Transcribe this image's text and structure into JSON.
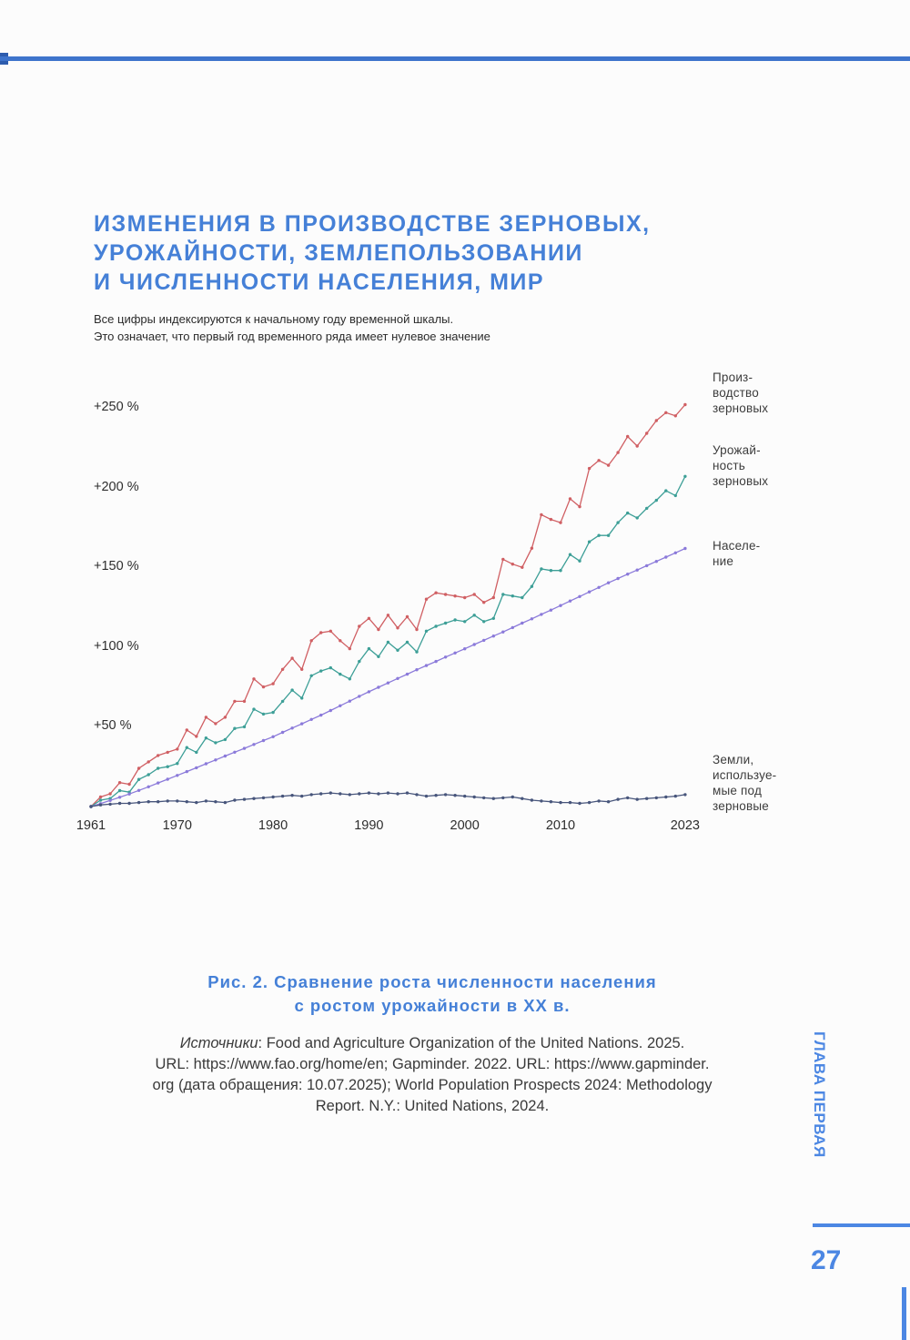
{
  "header": {
    "title_lines": [
      "ИЗМЕНЕНИЯ В ПРОИЗВОДСТВЕ ЗЕРНОВЫХ,",
      "УРОЖАЙНОСТИ, ЗЕМЛЕПОЛЬЗОВАНИИ",
      "И ЧИСЛЕННОСТИ НАСЕЛЕНИЯ, МИР"
    ],
    "subtitle_lines": [
      "Все цифры индексируются к начальному году временной шкалы.",
      "Это означает, что первый год временного ряда имеет нулевое значение"
    ]
  },
  "figure": {
    "caption_lines": [
      "Рис. 2. Сравнение роста численности населения",
      "с ростом урожайности в XX в."
    ],
    "sources": {
      "label_italic": "Источники",
      "line1_rest": ": Food and Agriculture Organization of the United Nations. 2025.",
      "lines_rest": [
        "URL: https://www.fao.org/home/en; Gapminder. 2022. URL: https://www.gapminder.",
        "org (дата обращения: 10.07.2025); World Population Prospects 2024: Methodology",
        "Report. N.Y.: United Nations, 2024."
      ]
    }
  },
  "sidebar": {
    "chapter_label": "ГЛАВА ПЕРВАЯ",
    "page_number": "27"
  },
  "colors": {
    "accent_blue": "#4580d7",
    "chapter_blue": "#4c87e3",
    "top_rule_blue": "#3e74cc",
    "production_red": "#d05f63",
    "yield_teal": "#3d9f97",
    "population_purple": "#8b7ada",
    "land_navy": "#47557b"
  },
  "chart_data": {
    "type": "line",
    "title": "",
    "xlabel": "",
    "ylabel": "",
    "unit": "percent change relative to 1961 baseline (1961 = 0 %)",
    "grid": false,
    "legend_position": "right",
    "ylim": [
      -10,
      265
    ],
    "x": [
      1961,
      1962,
      1963,
      1964,
      1965,
      1966,
      1967,
      1968,
      1969,
      1970,
      1971,
      1972,
      1973,
      1974,
      1975,
      1976,
      1977,
      1978,
      1979,
      1980,
      1981,
      1982,
      1983,
      1984,
      1985,
      1986,
      1987,
      1988,
      1989,
      1990,
      1991,
      1992,
      1993,
      1994,
      1995,
      1996,
      1997,
      1998,
      1999,
      2000,
      2001,
      2002,
      2003,
      2004,
      2005,
      2006,
      2007,
      2008,
      2009,
      2010,
      2011,
      2012,
      2013,
      2014,
      2015,
      2016,
      2017,
      2018,
      2019,
      2020,
      2021,
      2022,
      2023
    ],
    "x_axis_ticks": [
      1961,
      1970,
      1980,
      1990,
      2000,
      2010,
      2023
    ],
    "y_axis_ticks": [
      {
        "label": "+250 %",
        "value": 250
      },
      {
        "label": "+200 %",
        "value": 200
      },
      {
        "label": "+150 %",
        "value": 150
      },
      {
        "label": "+100 %",
        "value": 100
      },
      {
        "label": "+50 %",
        "value": 50
      }
    ],
    "series": [
      {
        "name": "Производство зерновых",
        "label_lines": [
          "Произ-",
          "водство",
          "зерновых"
        ],
        "color": "#d05f63",
        "values": [
          0,
          6,
          8,
          15,
          14,
          24,
          28,
          32,
          34,
          36,
          48,
          44,
          56,
          52,
          56,
          66,
          66,
          80,
          75,
          77,
          86,
          93,
          86,
          104,
          109,
          110,
          104,
          99,
          113,
          118,
          111,
          120,
          112,
          119,
          111,
          130,
          134,
          133,
          132,
          131,
          133,
          128,
          131,
          155,
          152,
          150,
          162,
          183,
          180,
          178,
          193,
          188,
          212,
          217,
          214,
          222,
          232,
          226,
          234,
          242,
          247,
          245,
          252
        ]
      },
      {
        "name": "Урожайность зерновых",
        "label_lines": [
          "Урожай-",
          "ность",
          "зерновых"
        ],
        "color": "#3d9f97",
        "values": [
          0,
          4,
          5,
          10,
          9,
          17,
          20,
          24,
          25,
          27,
          37,
          34,
          43,
          40,
          42,
          49,
          50,
          61,
          58,
          59,
          66,
          73,
          68,
          82,
          85,
          87,
          83,
          80,
          91,
          99,
          94,
          103,
          98,
          103,
          97,
          110,
          113,
          115,
          117,
          116,
          120,
          116,
          118,
          133,
          132,
          131,
          138,
          149,
          148,
          148,
          158,
          154,
          166,
          170,
          170,
          178,
          184,
          181,
          187,
          192,
          198,
          195,
          207
        ]
      },
      {
        "name": "Население",
        "label_lines": [
          "Населе-",
          "ние"
        ],
        "color": "#8b7ada",
        "values": [
          0,
          1.8,
          3.8,
          5.8,
          7.9,
          10.1,
          12.4,
          14.8,
          17.1,
          19.5,
          21.9,
          24.3,
          26.8,
          29.2,
          31.7,
          34.1,
          36.5,
          38.9,
          41.4,
          43.8,
          46.5,
          49.2,
          51.9,
          54.6,
          57.3,
          60.2,
          63.2,
          66.1,
          69.1,
          72.0,
          74.8,
          77.5,
          80.3,
          83.0,
          85.8,
          88.4,
          91.0,
          93.7,
          96.3,
          98.9,
          101.6,
          104.2,
          106.9,
          109.5,
          112.2,
          115.0,
          117.7,
          120.5,
          123.2,
          126.0,
          128.9,
          131.7,
          134.6,
          137.4,
          140.3,
          143.0,
          145.7,
          148.3,
          151.0,
          153.7,
          156.4,
          159.1,
          161.8
        ]
      },
      {
        "name": "Земли, используемые под зерновые",
        "label_lines": [
          "Земли,",
          "используе-",
          "мые под",
          "зерновые"
        ],
        "color": "#47557b",
        "values": [
          0,
          1,
          1.5,
          2,
          2,
          2.5,
          3,
          3,
          3.5,
          3.5,
          3,
          2.5,
          3.5,
          3,
          2.5,
          4,
          4.5,
          5,
          5.5,
          6,
          6.5,
          7,
          6.5,
          7.5,
          8,
          8.5,
          8,
          7.5,
          8,
          8.5,
          8,
          8.5,
          8,
          8.5,
          7.5,
          6.5,
          7,
          7.5,
          7,
          6.5,
          6,
          5.5,
          5,
          5.5,
          6,
          5,
          4,
          3.5,
          3,
          2.5,
          2.5,
          2,
          2.5,
          3.5,
          3,
          4.5,
          5.5,
          4.5,
          5,
          5.5,
          6,
          6.5,
          7.5
        ]
      }
    ]
  }
}
